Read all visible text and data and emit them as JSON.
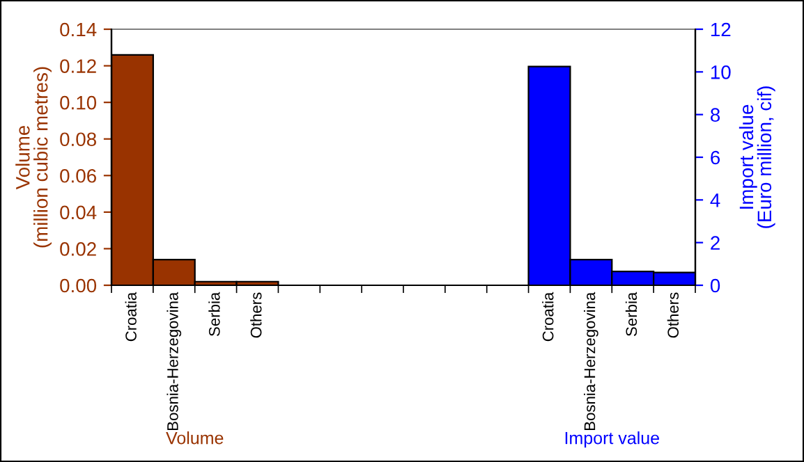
{
  "chart_data": {
    "type": "bar",
    "categories": [
      "Croatia",
      "Bosnia-Herzegovina",
      "Serbia",
      "Others",
      null,
      null,
      null,
      null,
      null,
      null,
      "Croatia",
      "Bosnia-Herzegovina",
      "Serbia",
      "Others"
    ],
    "series": [
      {
        "color": "#993300",
        "values": [
          0.126,
          0.014,
          0.002,
          0.002,
          null,
          null,
          null,
          null,
          null,
          null,
          null,
          null,
          null,
          null
        ]
      },
      {
        "color": "#0000ff",
        "axis": "y2",
        "values": [
          null,
          null,
          null,
          null,
          null,
          null,
          null,
          null,
          null,
          null,
          10.25,
          1.2,
          0.65,
          0.6
        ]
      }
    ],
    "ylabel": "Volume\n(million cubic metres)",
    "y2label": "Import value\n(Euro million, cif)",
    "ylim": [
      0,
      0.14
    ],
    "yticks": [
      {
        "value": 0,
        "label": "0.00"
      },
      {
        "value": 0.02,
        "label": "0.02"
      },
      {
        "value": 0.04,
        "label": "0.04"
      },
      {
        "value": 0.06,
        "label": "0.06"
      },
      {
        "value": 0.08,
        "label": "0.08"
      },
      {
        "value": 0.1,
        "label": "0.10"
      },
      {
        "value": 0.12,
        "label": "0.12"
      },
      {
        "value": 0.14,
        "label": "0.14"
      }
    ],
    "y2lim": [
      0,
      12
    ],
    "y2ticks": [
      0,
      2,
      4,
      6,
      8,
      10,
      12
    ],
    "annotations": [
      "Volume",
      "Import value"
    ],
    "grid": false,
    "legend": false
  }
}
